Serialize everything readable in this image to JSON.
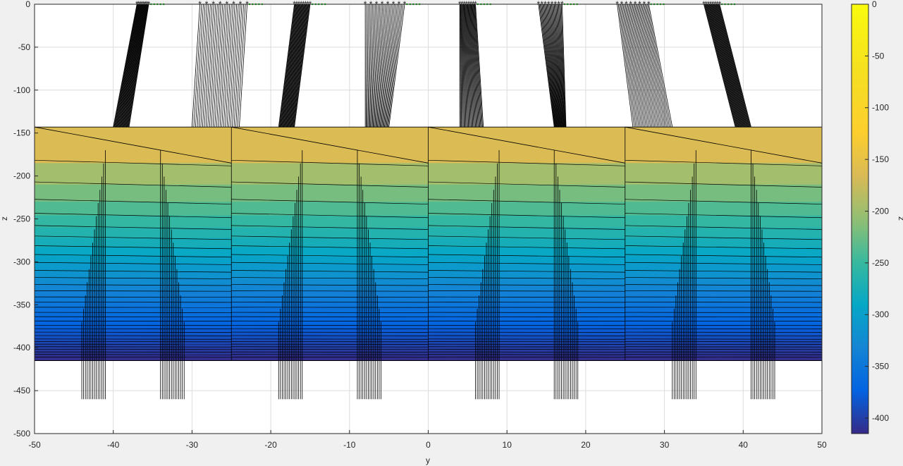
{
  "chart_data": {
    "type": "area",
    "title": "",
    "xlabel": "y",
    "ylabel": "z",
    "xlim": [
      -50,
      50
    ],
    "ylim": [
      -500,
      0
    ],
    "xticks": [
      -50,
      -40,
      -30,
      -20,
      -10,
      0,
      10,
      20,
      30,
      40,
      50
    ],
    "yticks": [
      0,
      -50,
      -100,
      -150,
      -200,
      -250,
      -300,
      -350,
      -400,
      -450,
      -500
    ],
    "grid": true,
    "legend": "none",
    "colormap": "parula",
    "colorbar": {
      "label": "z",
      "limits": [
        -415,
        0
      ],
      "ticks": [
        0,
        -50,
        -100,
        -150,
        -200,
        -250,
        -300,
        -350,
        -400
      ],
      "placement": "right"
    },
    "layer_bands": {
      "y_range": [
        -50,
        50
      ],
      "panel_edges": [
        -50,
        -25,
        0,
        25,
        50
      ],
      "z_top": -143,
      "z_bottom": -415,
      "layer_interfaces_z": [
        -185,
        -210,
        -230,
        -246,
        -260,
        -272,
        -283,
        -293,
        -302,
        -311,
        -319,
        -327,
        -334,
        -341,
        -347,
        -353,
        -359,
        -364,
        -369,
        -374,
        -378,
        -382,
        -386,
        -390,
        -393,
        -396,
        -399,
        -402,
        -405,
        -408,
        -411
      ]
    },
    "ray_groups": {
      "surface_z": 0,
      "layer_top_z": -143,
      "surface_y_ranges": [
        [
          -37,
          -35.5
        ],
        [
          -29,
          -23
        ],
        [
          -17,
          -15
        ],
        [
          -8,
          -3
        ],
        [
          4,
          6
        ],
        [
          14,
          17
        ],
        [
          24,
          28
        ],
        [
          35,
          37
        ]
      ],
      "base_y_ranges": [
        [
          -40,
          -38
        ],
        [
          -30,
          -24
        ],
        [
          -19,
          -17
        ],
        [
          -8,
          -5
        ],
        [
          4,
          7
        ],
        [
          16,
          17.5
        ],
        [
          26,
          31
        ],
        [
          39,
          41
        ]
      ],
      "receiver_marker_color": "#ff0000",
      "source_marker_color": "#00cc00"
    },
    "deep_ray_groups": {
      "bottom_z": -460,
      "y_ranges": [
        [
          -44,
          -41
        ],
        [
          -34,
          -31
        ],
        [
          -19,
          -16
        ],
        [
          -9,
          -6
        ],
        [
          6,
          9
        ],
        [
          16,
          19
        ],
        [
          31,
          34
        ],
        [
          41,
          44
        ]
      ]
    },
    "colors": {
      "axes_background": "#ffffff",
      "figure_background": "#f0f0f0",
      "grid": "#dcdcdc",
      "ray_line": "#000000"
    }
  }
}
